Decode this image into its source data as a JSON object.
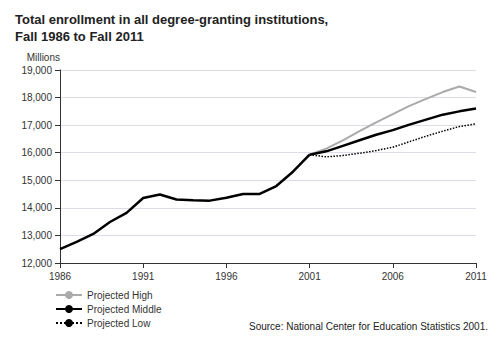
{
  "chart_data": {
    "type": "line",
    "title": "Total enrollment in all degree-granting institutions,\nFall 1986 to Fall 2011",
    "ylabel": "Millions",
    "annotation": "Source: National Center for Education Statistics 2001.",
    "xlim": [
      1986,
      2011
    ],
    "xticks": [
      1986,
      1991,
      1996,
      2001,
      2006,
      2011
    ],
    "ylim": [
      12000,
      19000
    ],
    "yticks": [
      {
        "value": 12000,
        "label": "12,000"
      },
      {
        "value": 13000,
        "label": "13,000"
      },
      {
        "value": 14000,
        "label": "14,000"
      },
      {
        "value": 15000,
        "label": "15,000"
      },
      {
        "value": 16000,
        "label": "16,000"
      },
      {
        "value": 17000,
        "label": "17,000"
      },
      {
        "value": 18000,
        "label": "18,000"
      },
      {
        "value": 19000,
        "label": "19,000"
      }
    ],
    "grid": true,
    "legend": "lower left",
    "series": [
      {
        "color": "#000000",
        "line_style": "solid",
        "x": [
          1986,
          1987,
          1988,
          1989,
          1990,
          1991,
          1992,
          1993,
          1994,
          1995,
          1996,
          1997,
          1998,
          1999,
          2000,
          2001
        ],
        "values": [
          12500,
          12766,
          13055,
          13488,
          13819,
          14359,
          14487,
          14305,
          14279,
          14262,
          14368,
          14502,
          14507,
          14791,
          15312,
          15928
        ]
      },
      {
        "name": "Projected High",
        "color": "#aaaaaa",
        "line_style": "solid",
        "x": [
          2001,
          2002,
          2003,
          2004,
          2005,
          2006,
          2007,
          2008,
          2009,
          2010,
          2011
        ],
        "values": [
          15928,
          16150,
          16450,
          16780,
          17100,
          17400,
          17700,
          17950,
          18200,
          18400,
          18200
        ]
      },
      {
        "name": "Projected Middle",
        "color": "#000000",
        "line_style": "solid",
        "x": [
          2001,
          2002,
          2003,
          2004,
          2005,
          2006,
          2007,
          2008,
          2009,
          2010,
          2011
        ],
        "values": [
          15928,
          16050,
          16250,
          16450,
          16650,
          16820,
          17020,
          17200,
          17380,
          17500,
          17600
        ]
      },
      {
        "name": "Projected Low",
        "color": "#000000",
        "line_style": "dotted",
        "x": [
          2001,
          2002,
          2003,
          2004,
          2005,
          2006,
          2007,
          2008,
          2009,
          2010,
          2011
        ],
        "values": [
          15928,
          15850,
          15900,
          15980,
          16080,
          16200,
          16400,
          16600,
          16780,
          16950,
          17050
        ]
      }
    ]
  }
}
